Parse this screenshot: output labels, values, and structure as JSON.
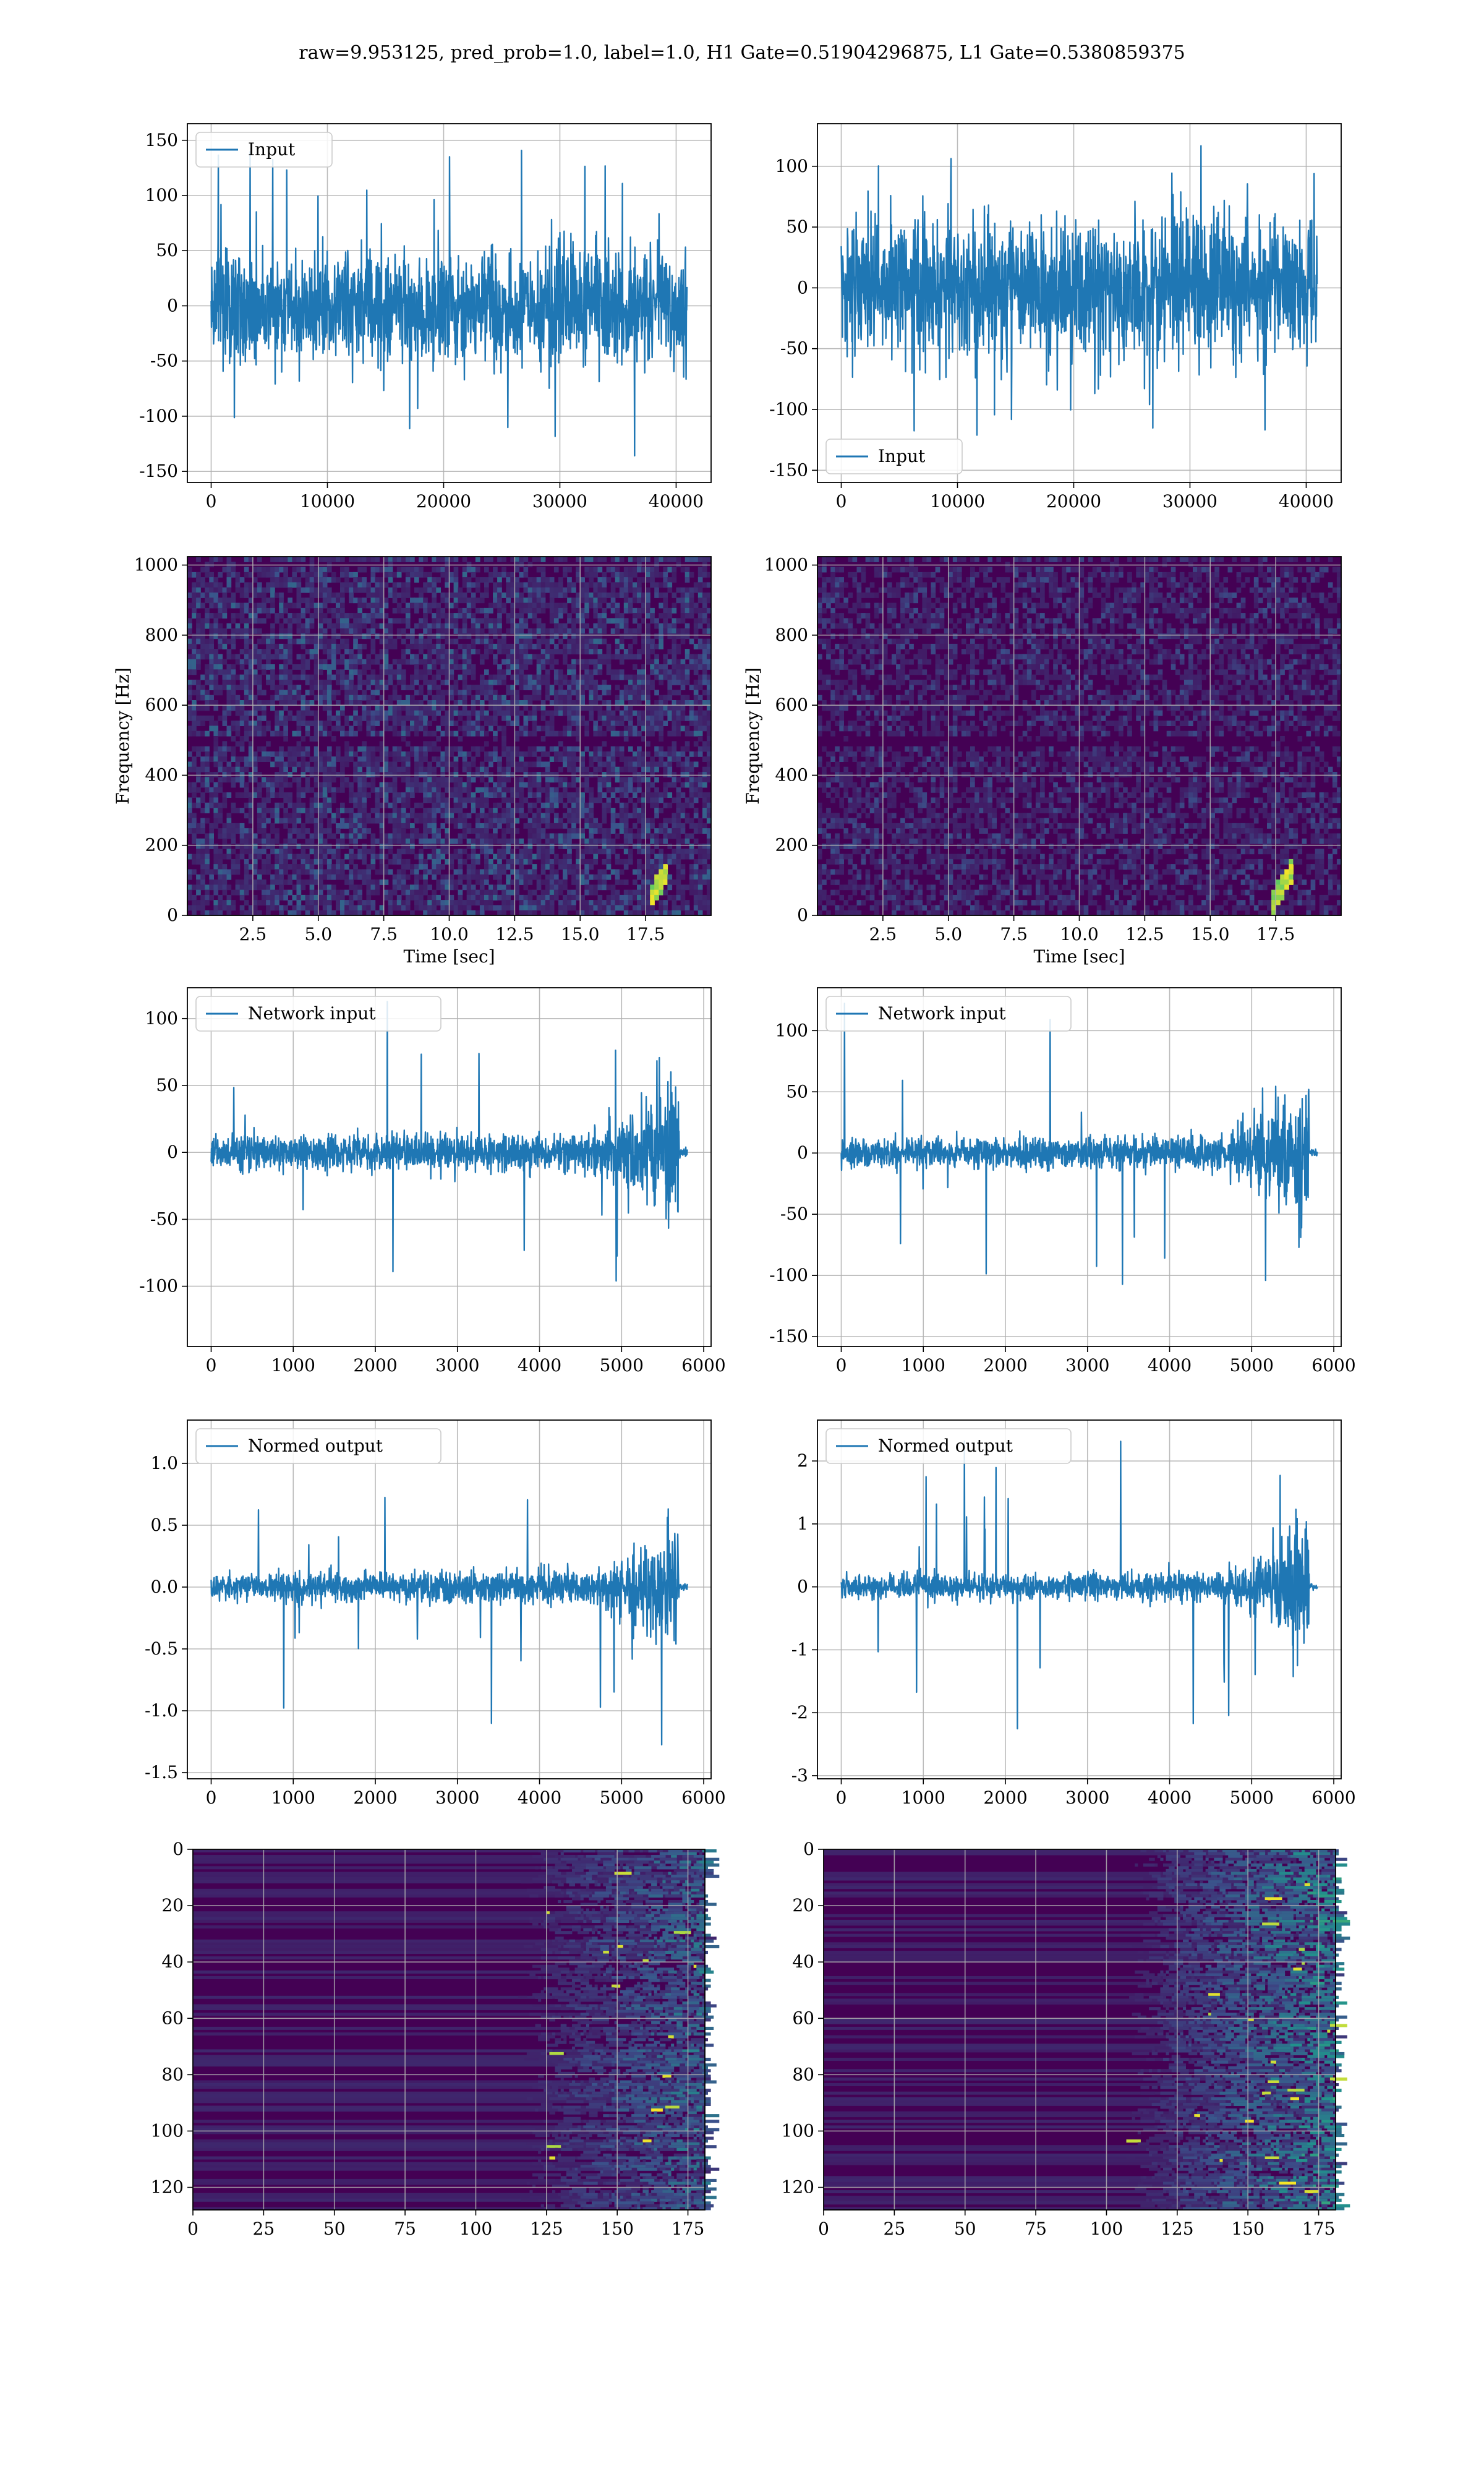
{
  "figure": {
    "title": "raw=9.953125, pred_prob=1.0, label=1.0, H1 Gate=0.51904296875, L1 Gate=0.5380859375"
  },
  "colors": {
    "line": "#1f77b4",
    "grid": "#b0b0b0",
    "viridis_low": "#440154",
    "viridis_mid": "#21918c",
    "viridis_high": "#fde725"
  },
  "chart_data": [
    {
      "id": "h1-input",
      "type": "line",
      "legend": "Input",
      "legend_loc": "upper left",
      "x_range": [
        0,
        40960
      ],
      "xlim": [
        -2048,
        43008
      ],
      "ylim": [
        -160,
        165
      ],
      "xticks": [
        0,
        10000,
        20000,
        30000,
        40000
      ],
      "yticks": [
        -150,
        -100,
        -50,
        0,
        50,
        100,
        150
      ],
      "noise": {
        "env_start": 65,
        "env_mid": 65,
        "env_end": 65,
        "spikes_max": 150,
        "grow_from": 1.0
      },
      "grid": true
    },
    {
      "id": "l1-input",
      "type": "line",
      "legend": "Input",
      "legend_loc": "lower left",
      "x_range": [
        0,
        40960
      ],
      "xlim": [
        -2048,
        43008
      ],
      "ylim": [
        -160,
        135
      ],
      "xticks": [
        0,
        10000,
        20000,
        30000,
        40000
      ],
      "yticks": [
        -150,
        -100,
        -50,
        0,
        50,
        100
      ],
      "noise": {
        "env_start": 70,
        "env_mid": 70,
        "env_end": 70,
        "spikes_max": 130,
        "grow_from": 1.0
      },
      "grid": true
    },
    {
      "id": "h1-spectrogram",
      "type": "heatmap",
      "colormap": "viridis",
      "xlabel": "Time [sec]",
      "ylabel": "Frequency [Hz]",
      "xlim": [
        0,
        20
      ],
      "ylim": [
        0,
        1024
      ],
      "xticks": [
        "2.5",
        "5.0",
        "7.5",
        "10.0",
        "12.5",
        "15.0",
        "17.5"
      ],
      "yticks": [
        0,
        200,
        400,
        600,
        800,
        1000
      ],
      "intensity": 0.3,
      "chirp_t": 18.2,
      "grid": true
    },
    {
      "id": "l1-spectrogram",
      "type": "heatmap",
      "colormap": "viridis",
      "xlabel": "Time [sec]",
      "ylabel": "Frequency [Hz]",
      "xlim": [
        0,
        20
      ],
      "ylim": [
        0,
        1024
      ],
      "xticks": [
        "2.5",
        "5.0",
        "7.5",
        "10.0",
        "12.5",
        "15.0",
        "17.5"
      ],
      "yticks": [
        0,
        200,
        400,
        600,
        800,
        1000
      ],
      "intensity": 0.2,
      "chirp_t": 18.0,
      "grid": true
    },
    {
      "id": "h1-network-input",
      "type": "line",
      "legend": "Network input",
      "legend_loc": "upper left",
      "x_range": [
        0,
        5800
      ],
      "xlim": [
        -290,
        6090
      ],
      "ylim": [
        -145,
        123
      ],
      "xticks": [
        0,
        1000,
        2000,
        3000,
        4000,
        5000,
        6000
      ],
      "yticks": [
        -100,
        -50,
        0,
        50,
        100
      ],
      "noise": {
        "env_start": 16,
        "env_mid": 18,
        "env_end": 100,
        "spikes_max": 130,
        "grow_from": 0.78,
        "cutoff": 5700
      },
      "grid": true
    },
    {
      "id": "l1-network-input",
      "type": "line",
      "legend": "Network input",
      "legend_loc": "upper left",
      "x_range": [
        0,
        5800
      ],
      "xlim": [
        -290,
        6090
      ],
      "ylim": [
        -158,
        135
      ],
      "xticks": [
        0,
        1000,
        2000,
        3000,
        4000,
        5000,
        6000
      ],
      "yticks": [
        -150,
        -100,
        -50,
        0,
        50,
        100
      ],
      "noise": {
        "env_start": 15,
        "env_mid": 16,
        "env_end": 95,
        "spikes_max": 145,
        "grow_from": 0.78,
        "cutoff": 5700
      },
      "grid": true
    },
    {
      "id": "h1-normed-output",
      "type": "line",
      "legend": "Normed output",
      "legend_loc": "upper left",
      "x_range": [
        0,
        5800
      ],
      "xlim": [
        -290,
        6090
      ],
      "ylim": [
        -1.55,
        1.35
      ],
      "xticks": [
        0,
        1000,
        2000,
        3000,
        4000,
        5000,
        6000
      ],
      "yticks": [
        -1.5,
        -1.0,
        -0.5,
        0.0,
        0.5,
        1.0
      ],
      "noise": {
        "env_start": 0.14,
        "env_mid": 0.16,
        "env_end": 0.85,
        "spikes_max": 1.4,
        "grow_from": 0.78,
        "cutoff": 5700
      },
      "grid": true
    },
    {
      "id": "l1-normed-output",
      "type": "line",
      "legend": "Normed output",
      "legend_loc": "upper left",
      "x_range": [
        0,
        5800
      ],
      "xlim": [
        -290,
        6090
      ],
      "ylim": [
        -3.05,
        2.65
      ],
      "xticks": [
        0,
        1000,
        2000,
        3000,
        4000,
        5000,
        6000
      ],
      "yticks": [
        -3,
        -2,
        -1,
        0,
        1,
        2
      ],
      "noise": {
        "env_start": 0.25,
        "env_mid": 0.28,
        "env_end": 1.6,
        "spikes_max": 2.6,
        "grow_from": 0.78,
        "cutoff": 5700
      },
      "grid": true
    },
    {
      "id": "h1-feature-map",
      "type": "heatmap",
      "colormap": "viridis",
      "xlim": [
        0,
        181
      ],
      "ylim": [
        128,
        0
      ],
      "xticks": [
        0,
        25,
        50,
        75,
        100,
        125,
        150,
        175
      ],
      "yticks": [
        0,
        20,
        40,
        60,
        80,
        100,
        120
      ],
      "onset": 125,
      "intensity": 0.6,
      "grid": true
    },
    {
      "id": "l1-feature-map",
      "type": "heatmap",
      "colormap": "viridis",
      "xlim": [
        0,
        181
      ],
      "ylim": [
        128,
        0
      ],
      "xticks": [
        0,
        25,
        50,
        75,
        100,
        125,
        150,
        175
      ],
      "yticks": [
        0,
        20,
        40,
        60,
        80,
        100,
        120
      ],
      "onset": 122,
      "intensity": 0.85,
      "grid": true
    }
  ]
}
